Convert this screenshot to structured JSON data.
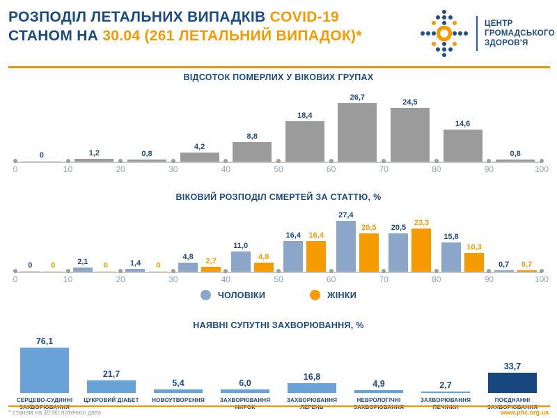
{
  "header": {
    "title_line1_dark": "РОЗПОДІЛ ЛЕТАЛЬНИХ ВИПАДКІВ ",
    "title_line1_accent": "COVID-19",
    "title_line2_dark": "СТАНОМ НА ",
    "title_line2_accent": "30.04 (261 ЛЕТАЛЬНИЙ ВИПАДОК)*",
    "logo_lines": [
      "ЦЕНТР",
      "ГРОМАДСЬКОГО",
      "ЗДОРОВ'Я"
    ]
  },
  "colors": {
    "navy": "#1b4a7e",
    "accent_orange": "#f59b00",
    "divider_orange": "#f39200",
    "gray_bar": "#9b9b9b",
    "male_blue": "#8ba6c9",
    "female_orange": "#f59b00",
    "comorbidity_blue": "#68a2d6",
    "highlight_navy": "#17477e"
  },
  "chart_data": [
    {
      "type": "bar",
      "title": "ВІДСОТОК ПОМЕРЛИХ У ВІКОВИХ ГРУПАХ",
      "categories": [
        "0-10",
        "10-20",
        "20-30",
        "30-40",
        "40-50",
        "50-60",
        "60-70",
        "70-80",
        "80-90",
        "90-100"
      ],
      "x_ticks": [
        "0",
        "10",
        "20",
        "30",
        "40",
        "50",
        "60",
        "70",
        "80",
        "90",
        "100"
      ],
      "x_range": [
        0,
        100
      ],
      "values": [
        0,
        1.2,
        0.8,
        4.2,
        8.8,
        18.4,
        26.7,
        24.5,
        14.6,
        0.8
      ],
      "labels": [
        "0",
        "1,2",
        "0,8",
        "4,2",
        "8,8",
        "18,4",
        "26,7",
        "24,5",
        "14,6",
        "0,8"
      ],
      "bar_color": "#9b9b9b",
      "zero_color": "#dddddd",
      "label_color": "#1b4a7e",
      "grid": false,
      "ylim": [
        0,
        30
      ]
    },
    {
      "type": "bar",
      "title": "ВІКОВИЙ РОЗПОДІЛ СМЕРТЕЙ ЗА СТАТТЮ, %",
      "categories": [
        "0-10",
        "10-20",
        "20-30",
        "30-40",
        "40-50",
        "50-60",
        "60-70",
        "70-80",
        "80-90",
        "90-100"
      ],
      "x_ticks": [
        "0",
        "10",
        "20",
        "30",
        "40",
        "50",
        "60",
        "70",
        "80",
        "90",
        "100"
      ],
      "x_range": [
        0,
        100
      ],
      "series": [
        {
          "name": "ЧОЛОВІКИ",
          "color": "#8ba6c9",
          "zero_color": "#ccd7e5",
          "label_color": "#1b4a7e",
          "values": [
            0,
            2.1,
            1.4,
            4.8,
            11.0,
            16.4,
            27.4,
            20.5,
            15.8,
            0.7
          ],
          "labels": [
            "0",
            "2,1",
            "1,4",
            "4,8",
            "11,0",
            "16,4",
            "27,4",
            "20,5",
            "15,8",
            "0,7"
          ]
        },
        {
          "name": "ЖІНКИ",
          "color": "#f59b00",
          "zero_color": "#f6e3bd",
          "label_color": "#f59b00",
          "values": [
            0,
            0,
            0,
            2.7,
            4.8,
            16.4,
            20.5,
            23.3,
            10.3,
            0.7
          ],
          "labels": [
            "0",
            "0",
            "0",
            "2,7",
            "4,8",
            "16,4",
            "20,5",
            "23,3",
            "10,3",
            "0,7"
          ]
        }
      ],
      "legend_position": "bottom",
      "grid": false,
      "ylim": [
        0,
        30
      ]
    },
    {
      "type": "bar",
      "title": "НАЯВНІ СУПУТНІ ЗАХВОРЮВАННЯ, %",
      "categories": [
        "СЕРЦЕВО-СУДИННІ ЗАХВОРЮВАННЯ",
        "ЦУКРОВИЙ ДІАБЕТ",
        "НОВОУТВОРЕННЯ",
        "ЗАХВОРЮВАННЯ НИРОК",
        "ЗАХВОРЮВАННЯ ЛЕГЕНЬ",
        "НЕВРОЛОГІЧНІ ЗАХВОРЮВАННЯ",
        "ЗАХВОРЮВАННЯ ПЕЧІНКИ",
        "ПОЄДНАННІ ЗАХВОРЮВАННЯ"
      ],
      "values": [
        76.1,
        21.7,
        5.4,
        6.0,
        16.8,
        4.9,
        2.7,
        33.7
      ],
      "labels": [
        "76,1",
        "21,7",
        "5,4",
        "6,0",
        "16,8",
        "4,9",
        "2,7",
        "33,7"
      ],
      "bar_color": "#68a2d6",
      "highlight_index": 7,
      "highlight_color": "#17477e",
      "grid": false,
      "ylim": [
        0,
        80
      ]
    }
  ],
  "footer": {
    "note": "* станом на 10:00 поточної дати",
    "website": "www.phc.org.ua"
  }
}
